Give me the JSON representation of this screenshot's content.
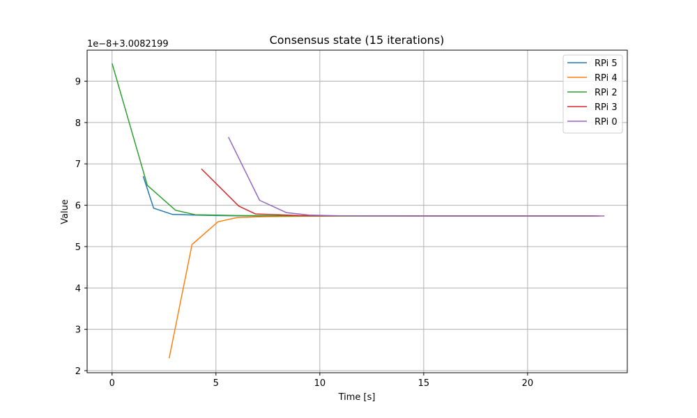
{
  "chart_data": {
    "type": "line",
    "title": "Consensus state (15 iterations)",
    "xlabel": "Time [s]",
    "ylabel": "Value",
    "y_offset_label": "1e−8+3.0082199",
    "xlim": [
      -1.2,
      24.8
    ],
    "ylim": [
      1.95,
      9.75
    ],
    "xticks": [
      0,
      5,
      10,
      15,
      20
    ],
    "yticks": [
      2,
      3,
      4,
      5,
      6,
      7,
      8,
      9
    ],
    "grid": true,
    "legend_position": "top-right",
    "series": [
      {
        "name": "RPi 5",
        "color": "#1f77b4",
        "points": [
          [
            1.5,
            6.7
          ],
          [
            2.0,
            5.93
          ],
          [
            2.9,
            5.78
          ],
          [
            4.0,
            5.76
          ],
          [
            5.0,
            5.75
          ],
          [
            6.0,
            5.745
          ],
          [
            7.0,
            5.742
          ],
          [
            8.0,
            5.74
          ],
          [
            10.0,
            5.74
          ],
          [
            15.0,
            5.74
          ],
          [
            20.0,
            5.74
          ],
          [
            23.2,
            5.74
          ]
        ]
      },
      {
        "name": "RPi 4",
        "color": "#ff7f0e",
        "points": [
          [
            2.75,
            2.3
          ],
          [
            3.85,
            5.05
          ],
          [
            5.1,
            5.6
          ],
          [
            6.0,
            5.7
          ],
          [
            7.0,
            5.72
          ],
          [
            8.5,
            5.73
          ],
          [
            10.0,
            5.735
          ],
          [
            15.0,
            5.74
          ],
          [
            20.0,
            5.74
          ],
          [
            23.5,
            5.74
          ]
        ]
      },
      {
        "name": "RPi 2",
        "color": "#2ca02c",
        "points": [
          [
            0.0,
            9.43
          ],
          [
            1.7,
            6.48
          ],
          [
            3.05,
            5.88
          ],
          [
            4.0,
            5.77
          ],
          [
            5.0,
            5.76
          ],
          [
            6.0,
            5.75
          ],
          [
            7.5,
            5.745
          ],
          [
            10.0,
            5.74
          ],
          [
            15.0,
            5.74
          ],
          [
            20.0,
            5.74
          ],
          [
            23.0,
            5.74
          ]
        ]
      },
      {
        "name": "RPi 3",
        "color": "#d62728",
        "points": [
          [
            4.3,
            6.88
          ],
          [
            6.1,
            5.98
          ],
          [
            6.9,
            5.79
          ],
          [
            8.0,
            5.77
          ],
          [
            9.0,
            5.75
          ],
          [
            10.0,
            5.745
          ],
          [
            15.0,
            5.74
          ],
          [
            20.0,
            5.74
          ],
          [
            23.4,
            5.74
          ]
        ]
      },
      {
        "name": "RPi 0",
        "color": "#9467bd",
        "points": [
          [
            5.6,
            7.65
          ],
          [
            7.1,
            6.12
          ],
          [
            8.4,
            5.82
          ],
          [
            9.5,
            5.76
          ],
          [
            11.0,
            5.745
          ],
          [
            15.0,
            5.74
          ],
          [
            20.0,
            5.74
          ],
          [
            23.7,
            5.74
          ]
        ]
      }
    ]
  }
}
